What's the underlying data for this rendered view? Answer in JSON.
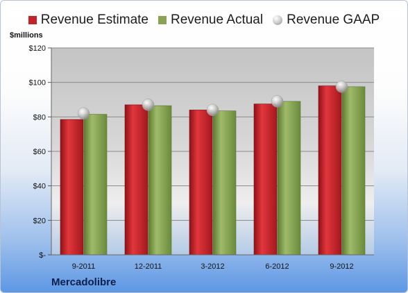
{
  "colors": {
    "estimate": "#c42128",
    "actual": "#88a454",
    "gaap": "#bcbcbc"
  },
  "legend": {
    "estimate_label": "Revenue Estimate",
    "actual_label": "Revenue Actual",
    "gaap_label": "Revenue GAAP"
  },
  "units_label": "$millions",
  "company": "Mercadolibre",
  "chart_data": {
    "type": "bar",
    "categories": [
      "9-2011",
      "12-2011",
      "3-2012",
      "6-2012",
      "9-2012"
    ],
    "series": [
      {
        "name": "Revenue Estimate",
        "values": [
          78.5,
          87,
          84,
          87.5,
          98
        ]
      },
      {
        "name": "Revenue Actual",
        "values": [
          81.5,
          86.5,
          83.5,
          89,
          97.5
        ]
      },
      {
        "name": "Revenue GAAP",
        "values": [
          82,
          87,
          84,
          89,
          97.5
        ]
      }
    ],
    "ylabel": "$millions",
    "ylim": [
      0,
      120
    ],
    "yticks": [
      0,
      20,
      40,
      60,
      80,
      100,
      120
    ],
    "ytick_labels": [
      "$-",
      "$20",
      "$40",
      "$60",
      "$80",
      "$100",
      "$120"
    ],
    "grid": true,
    "legend_position": "top"
  }
}
